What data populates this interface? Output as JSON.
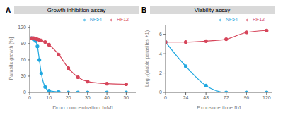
{
  "chart_data": [
    {
      "type": "line",
      "title": "Growth inhibition assay",
      "annotations": [
        "A"
      ],
      "x_label": "Drug concentration [nM]",
      "y_label": "Parasite growth [%]",
      "x": [
        0,
        1,
        2,
        3,
        4,
        5,
        6,
        8,
        10,
        15,
        20,
        25,
        30,
        40,
        50
      ],
      "series": [
        {
          "name": "NF54",
          "color": "#1fa8e0",
          "marker": "circle",
          "values": [
            100,
            100,
            98,
            95,
            85,
            60,
            35,
            10,
            3,
            1,
            0,
            0,
            0,
            0,
            0
          ]
        },
        {
          "name": "RF12",
          "color": "#d6455a",
          "marker": "circle",
          "values": [
            100,
            100,
            100,
            99,
            98,
            97,
            96,
            93,
            88,
            70,
            45,
            28,
            20,
            16,
            15
          ]
        }
      ],
      "xlim": [
        0,
        55
      ],
      "xticks": [
        0,
        10,
        20,
        30,
        40,
        50
      ],
      "ylim": [
        0,
        125
      ],
      "yticks": [
        0,
        30,
        60,
        90,
        120
      ],
      "grid": false,
      "legend": "top-right"
    },
    {
      "type": "line",
      "title": "Viability assay",
      "annotations": [
        "B"
      ],
      "x_label": "Exposure time [h]",
      "y_label": "Log₁₀(viable parasites +1)",
      "x": [
        0,
        24,
        48,
        72,
        96,
        120
      ],
      "series": [
        {
          "name": "NF54",
          "color": "#1fa8e0",
          "marker": "circle",
          "values": [
            5.2,
            2.7,
            0.7,
            0,
            0,
            0
          ]
        },
        {
          "name": "RF12",
          "color": "#d6455a",
          "marker": "circle",
          "values": [
            5.2,
            5.2,
            5.3,
            5.5,
            6.2,
            6.4
          ]
        }
      ],
      "xlim": [
        0,
        126
      ],
      "xticks": [
        0,
        24,
        48,
        72,
        96,
        120
      ],
      "ylim": [
        0,
        7
      ],
      "yticks": [
        0,
        2,
        4,
        6
      ],
      "grid": false,
      "legend": "top-right"
    }
  ]
}
